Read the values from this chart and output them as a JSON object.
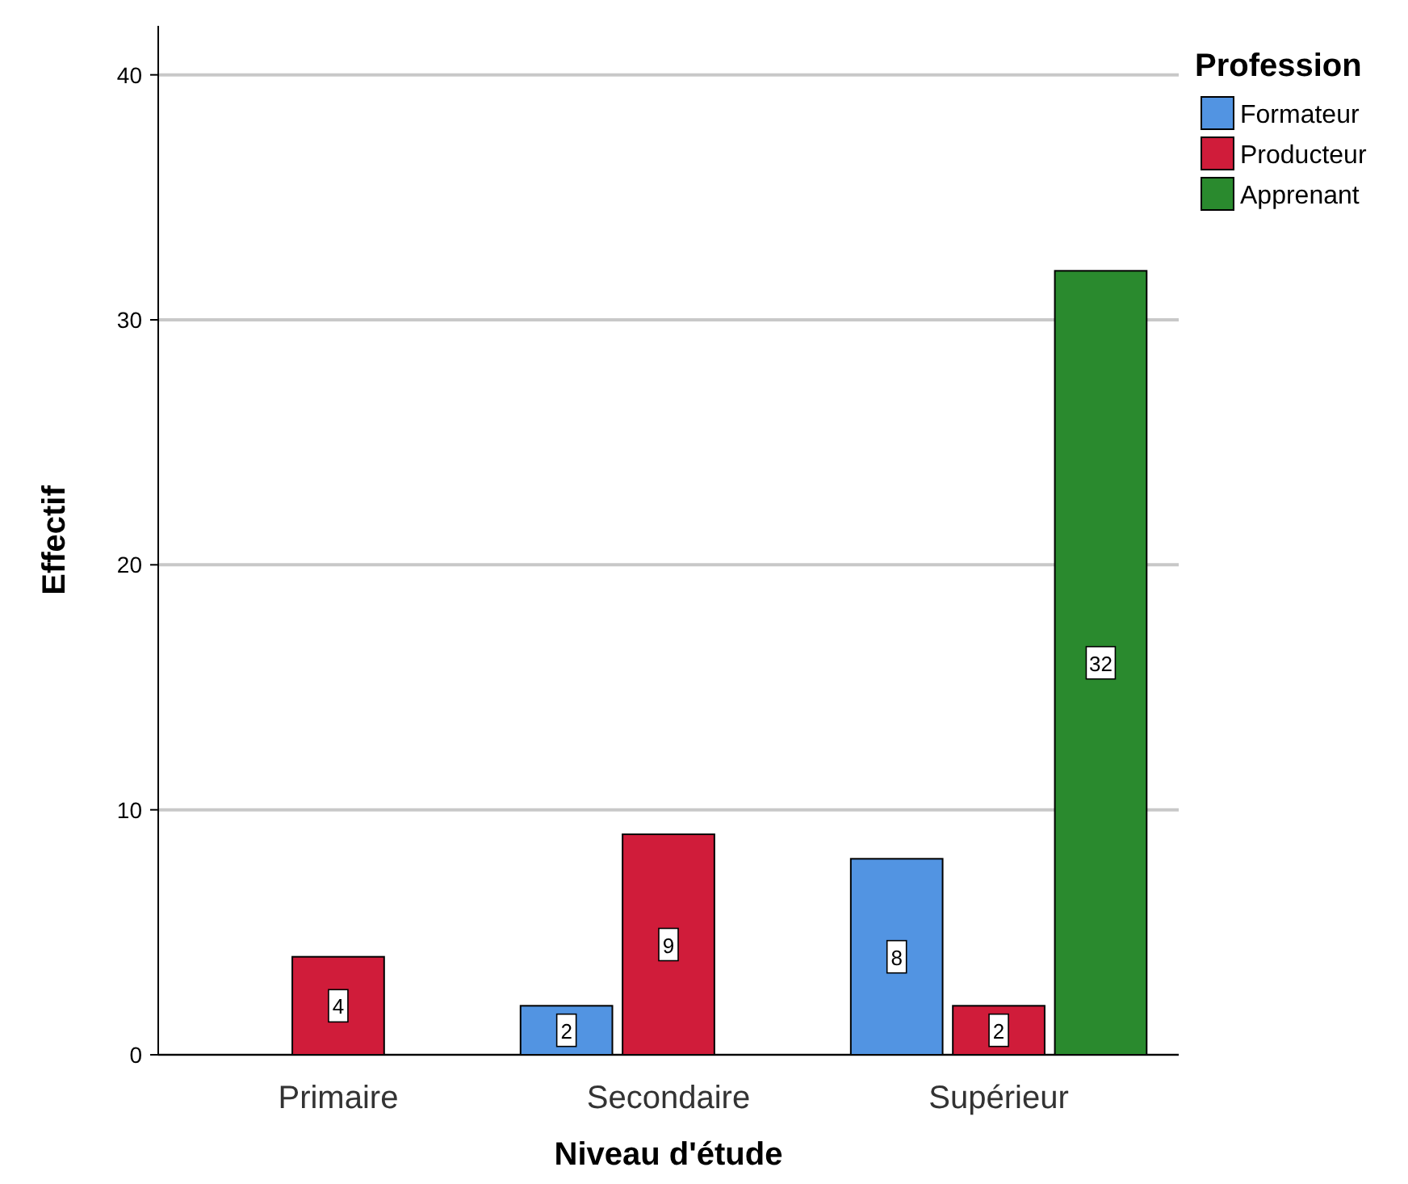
{
  "chart_data": {
    "type": "bar",
    "xlabel": "Niveau d'étude",
    "ylabel": "Effectif",
    "legend_title": "Profession",
    "categories": [
      "Primaire",
      "Secondaire",
      "Supérieur"
    ],
    "series": [
      {
        "name": "Formateur",
        "color": "#5294e2",
        "values": [
          null,
          2,
          8
        ]
      },
      {
        "name": "Producteur",
        "color": "#d01c3a",
        "values": [
          4,
          9,
          2
        ]
      },
      {
        "name": "Apprenant",
        "color": "#2a8a2e",
        "values": [
          null,
          null,
          32
        ]
      }
    ],
    "ylim": [
      0,
      42
    ],
    "yticks": [
      0,
      10,
      20,
      30,
      40
    ],
    "grid": "y",
    "legend": "top right",
    "data_labels": true
  }
}
